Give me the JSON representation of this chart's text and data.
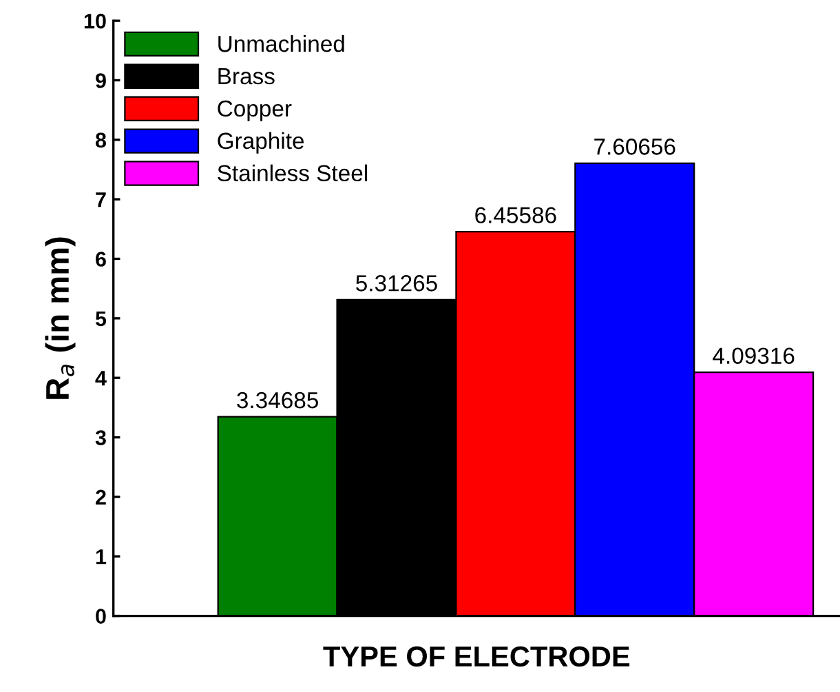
{
  "chart_data": {
    "type": "bar",
    "categories": [
      null
    ],
    "series": [
      {
        "name": "Unmachined",
        "color": "#008000",
        "values": [
          3.34685
        ]
      },
      {
        "name": "Brass",
        "color": "#000000",
        "values": [
          5.31265
        ]
      },
      {
        "name": "Copper",
        "color": "#ff0000",
        "values": [
          6.45586
        ]
      },
      {
        "name": "Graphite",
        "color": "#0000ff",
        "values": [
          7.60656
        ]
      },
      {
        "name": "Stainless Steel",
        "color": "#ff00ff",
        "values": [
          4.09316
        ]
      }
    ],
    "xlabel": "TYPE OF ELECTRODE",
    "ylabel": "R$_{a}$ (in mm)",
    "ylim": [
      0,
      10
    ],
    "yticks": [
      0,
      1,
      2,
      3,
      4,
      5,
      6,
      7,
      8,
      9,
      10
    ],
    "data_labels": true,
    "legend": "top left",
    "grid": false
  }
}
